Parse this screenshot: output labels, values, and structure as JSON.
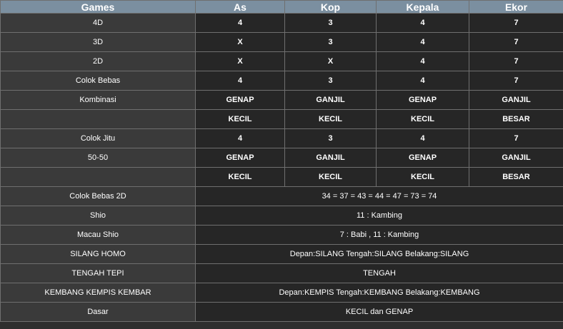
{
  "headers": [
    "Games",
    "As",
    "Kop",
    "Kepala",
    "Ekor"
  ],
  "rows4": [
    {
      "game": "4D",
      "as": "4",
      "kop": "3",
      "kepala": "4",
      "ekor": "7"
    },
    {
      "game": "3D",
      "as": "X",
      "kop": "3",
      "kepala": "4",
      "ekor": "7"
    },
    {
      "game": "2D",
      "as": "X",
      "kop": "X",
      "kepala": "4",
      "ekor": "7"
    },
    {
      "game": "Colok Bebas",
      "as": "4",
      "kop": "3",
      "kepala": "4",
      "ekor": "7"
    },
    {
      "game": "Kombinasi",
      "as": "GENAP",
      "kop": "GANJIL",
      "kepala": "GENAP",
      "ekor": "GANJIL"
    },
    {
      "game": "",
      "as": "KECIL",
      "kop": "KECIL",
      "kepala": "KECIL",
      "ekor": "BESAR"
    },
    {
      "game": "Colok Jitu",
      "as": "4",
      "kop": "3",
      "kepala": "4",
      "ekor": "7"
    },
    {
      "game": "50-50",
      "as": "GENAP",
      "kop": "GANJIL",
      "kepala": "GENAP",
      "ekor": "GANJIL"
    },
    {
      "game": "",
      "as": "KECIL",
      "kop": "KECIL",
      "kepala": "KECIL",
      "ekor": "BESAR"
    }
  ],
  "rowsSpan": [
    {
      "game": "Colok Bebas 2D",
      "value": "34 = 37 = 43 = 44 = 47 = 73 = 74"
    },
    {
      "game": "Shio",
      "value": "11 : Kambing"
    },
    {
      "game": "Macau Shio",
      "value": "7 : Babi , 11 : Kambing"
    },
    {
      "game": "SILANG HOMO",
      "value": "Depan:SILANG Tengah:SILANG Belakang:SILANG"
    },
    {
      "game": "TENGAH TEPI",
      "value": "TENGAH"
    },
    {
      "game": "KEMBANG KEMPIS KEMBAR",
      "value": "Depan:KEMPIS Tengah:KEMBANG Belakang:KEMBANG"
    },
    {
      "game": "Dasar",
      "value": "KECIL dan GENAP"
    }
  ]
}
